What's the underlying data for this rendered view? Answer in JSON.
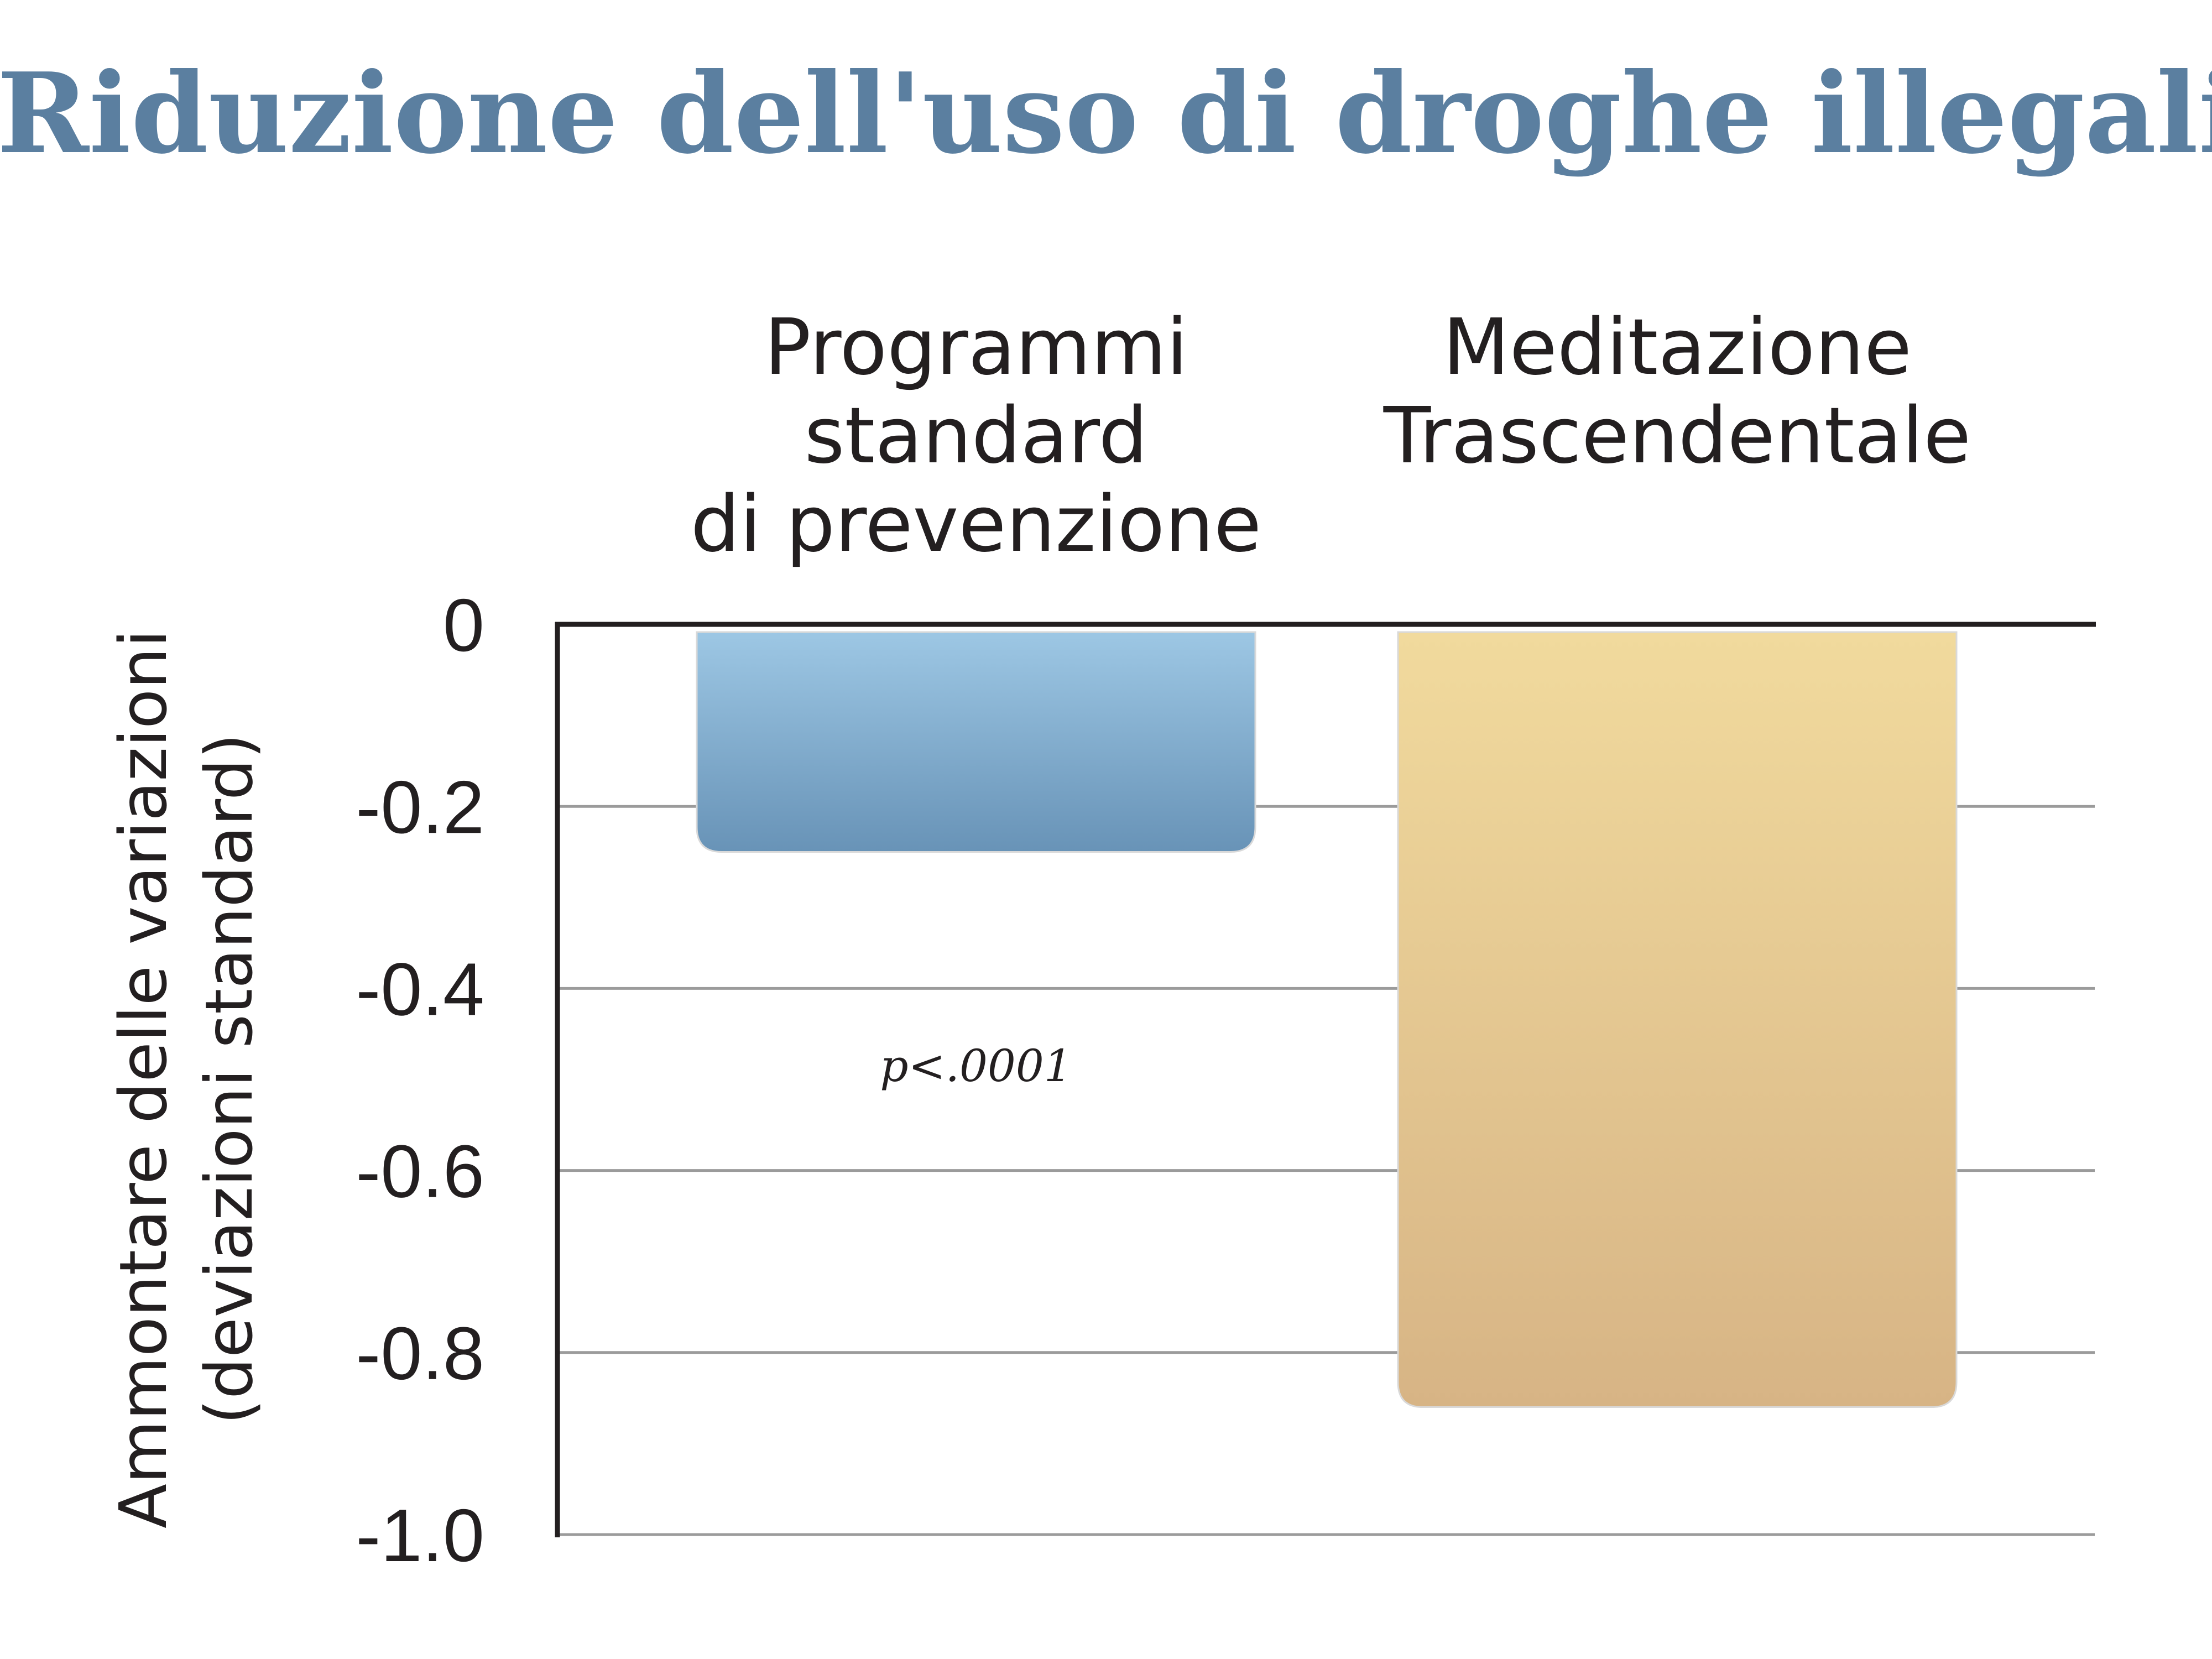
{
  "chart_data": {
    "type": "bar",
    "title": "Riduzione dell'uso di droghe illegali",
    "categories": [
      [
        "Programmi",
        "standard",
        "di prevenzione"
      ],
      [
        "Meditazione",
        "Trascendentale"
      ]
    ],
    "values": [
      -0.25,
      -0.86
    ],
    "colors": [
      [
        "#9dc7e4",
        "#6893b7"
      ],
      [
        "#f1da9d",
        "#d7b485"
      ]
    ],
    "ylabel": [
      "Ammontare delle variazioni",
      "(deviazioni standard)"
    ],
    "ylim": [
      -1.0,
      0
    ],
    "yticks": [
      0,
      -0.2,
      -0.4,
      -0.6,
      -0.8,
      -1.0
    ],
    "ytick_labels": [
      "0",
      "-0.2",
      "-0.4",
      "-0.6",
      "-0.8",
      "-1.0"
    ],
    "grid": true,
    "annotation": "p<.0001"
  }
}
